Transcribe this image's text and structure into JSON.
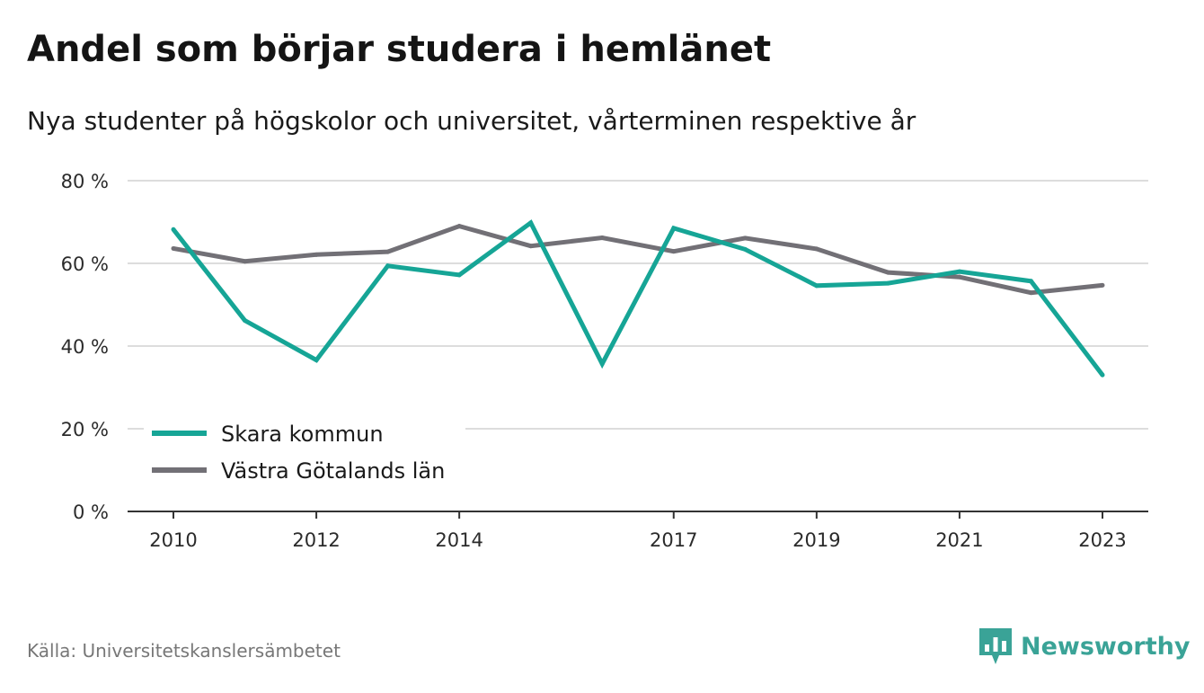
{
  "header": {
    "title": "Andel som börjar studera i hemlänet",
    "subtitle": "Nya studenter på högskolor och universitet, vårterminen respektive år"
  },
  "footer": {
    "source": "Källa: Universitetskanslersämbetet",
    "brand": "Newsworthy"
  },
  "chart_data": {
    "type": "line",
    "x": [
      2010,
      2011,
      2012,
      2013,
      2014,
      2015,
      2016,
      2017,
      2018,
      2019,
      2020,
      2021,
      2022,
      2023
    ],
    "x_tick_values": [
      2010,
      2012,
      2014,
      2017,
      2019,
      2021,
      2023
    ],
    "x_tick_labels": [
      "2010",
      "2012",
      "2014",
      "2017",
      "2019",
      "2021",
      "2023"
    ],
    "y_tick_values": [
      0,
      20,
      40,
      60,
      80
    ],
    "y_tick_labels": [
      "0 %",
      "20 %",
      "40 %",
      "60 %",
      "80 %"
    ],
    "ylim": [
      0,
      80
    ],
    "grid": true,
    "legend_position": "bottom-left",
    "series": [
      {
        "name": "Skara kommun",
        "color": "#16a596",
        "values": [
          68.2,
          46.2,
          36.6,
          59.4,
          57.2,
          69.8,
          35.7,
          68.5,
          63.4,
          54.6,
          55.2,
          58.0,
          55.7,
          33.0
        ]
      },
      {
        "name": "Västra Götalands län",
        "color": "#727076",
        "values": [
          63.6,
          60.5,
          62.1,
          62.8,
          69.0,
          64.2,
          66.2,
          62.9,
          66.1,
          63.5,
          57.8,
          56.7,
          52.9,
          54.7
        ]
      }
    ]
  }
}
